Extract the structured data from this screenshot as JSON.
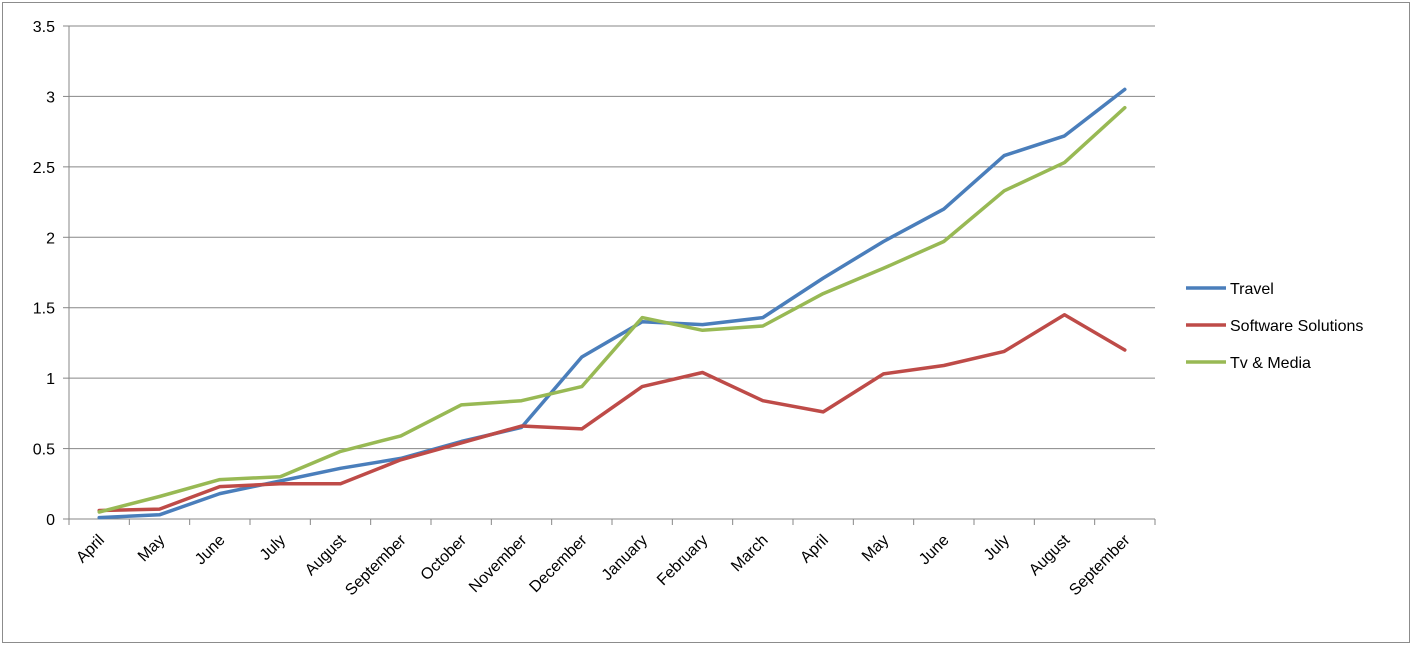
{
  "chart_data": {
    "type": "line",
    "title": "",
    "xlabel": "",
    "ylabel": "",
    "ylim": [
      0,
      3.5
    ],
    "yticks": [
      "0",
      "0.5",
      "1",
      "1.5",
      "2",
      "2.5",
      "3",
      "3.5"
    ],
    "grid": true,
    "legend_position": "right",
    "categories": [
      "April",
      "May",
      "June",
      "July",
      "August",
      "September",
      "October",
      "November",
      "December",
      "January",
      "February",
      "March",
      "April",
      "May",
      "June",
      "July",
      "August",
      "September"
    ],
    "series": [
      {
        "name": "Travel",
        "color": "#4a7ebb",
        "values": [
          0.01,
          0.03,
          0.18,
          0.27,
          0.36,
          0.43,
          0.55,
          0.65,
          1.15,
          1.4,
          1.38,
          1.43,
          1.71,
          1.97,
          2.2,
          2.58,
          2.72,
          3.05
        ]
      },
      {
        "name": "Software Solutions",
        "color": "#be4b48",
        "values": [
          0.06,
          0.07,
          0.23,
          0.25,
          0.25,
          0.42,
          0.54,
          0.66,
          0.64,
          0.94,
          1.04,
          0.84,
          0.76,
          1.03,
          1.09,
          1.19,
          1.45,
          1.2
        ]
      },
      {
        "name": "Tv & Media",
        "color": "#98b954",
        "values": [
          0.05,
          0.16,
          0.28,
          0.3,
          0.48,
          0.59,
          0.81,
          0.84,
          0.94,
          1.43,
          1.34,
          1.37,
          1.6,
          1.78,
          1.97,
          2.33,
          2.53,
          2.92
        ]
      }
    ]
  }
}
